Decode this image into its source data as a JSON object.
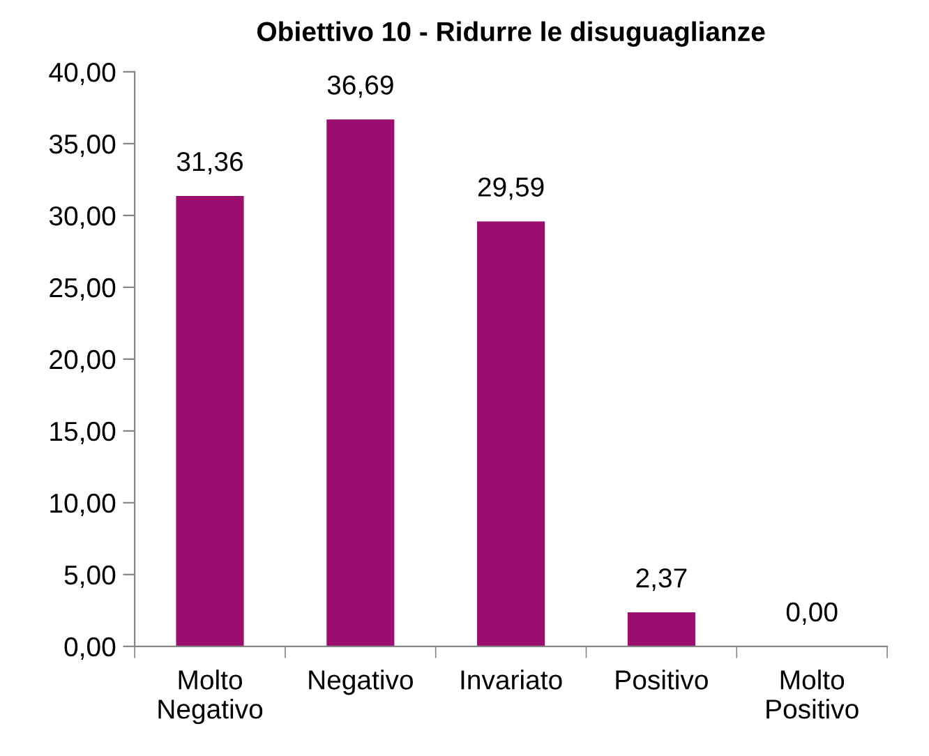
{
  "chart_data": {
    "type": "bar",
    "title": "Obiettivo 10 - Ridurre le disuguaglianze",
    "categories": [
      "Molto\nNegativo",
      "Negativo",
      "Invariato",
      "Positivo",
      "Molto\nPositivo"
    ],
    "values": [
      31.36,
      36.69,
      29.59,
      2.37,
      0.0
    ],
    "value_labels": [
      "31,36",
      "36,69",
      "29,59",
      "2,37",
      "0,00"
    ],
    "color": "#9b0d6f",
    "ylim": [
      0,
      40
    ],
    "yticks": [
      {
        "value": 0,
        "label": "0,00"
      },
      {
        "value": 5,
        "label": "5,00"
      },
      {
        "value": 10,
        "label": "10,00"
      },
      {
        "value": 15,
        "label": "15,00"
      },
      {
        "value": 20,
        "label": "20,00"
      },
      {
        "value": 25,
        "label": "25,00"
      },
      {
        "value": 30,
        "label": "30,00"
      },
      {
        "value": 35,
        "label": "35,00"
      },
      {
        "value": 40,
        "label": "40,00"
      }
    ],
    "grid": false,
    "legend": false
  }
}
